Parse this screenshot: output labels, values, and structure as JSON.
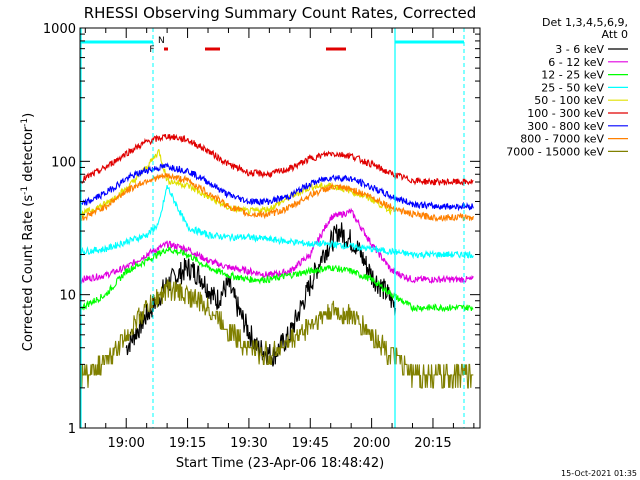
{
  "chart_data": {
    "type": "line",
    "title": "RHESSI Observing Summary Count Rates, Corrected",
    "xlabel": "Start Time (23-Apr-06 18:48:42)",
    "ylabel": "Corrected Count Rate (s⁻¹ detector⁻¹)",
    "ylabel_parts": {
      "a": "Corrected Count Rate (s",
      "b": "-1",
      "c": " detector",
      "d": "-1",
      "e": ")"
    },
    "timestamp": "15-Oct-2021 01:35",
    "y_scale": "log",
    "ylim": [
      1,
      1000
    ],
    "xlim": [
      "18:48:42",
      "20:26:30"
    ],
    "y_ticks": [
      "1",
      "10",
      "100",
      "1000"
    ],
    "x_ticks": [
      "19:00",
      "19:15",
      "19:30",
      "19:45",
      "20:00",
      "20:15"
    ],
    "legend_header": [
      "Det 1,3,4,5,6,9,",
      "Att 0"
    ],
    "flags": {
      "night_marker": "N",
      "flare_marker": "F"
    },
    "series": [
      {
        "name": "3 - 6 keV",
        "color": "#000000",
        "x": [
          "19:00",
          "19:05",
          "19:10",
          "19:15",
          "19:18",
          "19:22",
          "19:25",
          "19:28",
          "19:32",
          "19:36",
          "19:40",
          "19:44",
          "19:48",
          "19:52",
          "19:56",
          "20:00",
          "20:04",
          "20:06"
        ],
        "values": [
          4,
          7,
          12,
          16,
          14,
          9,
          12,
          7,
          4,
          3.5,
          5,
          10,
          20,
          30,
          24,
          14,
          10,
          8
        ]
      },
      {
        "name": "6 - 12 keV",
        "color": "#e000e0",
        "x": [
          "18:49",
          "18:55",
          "19:00",
          "19:05",
          "19:10",
          "19:15",
          "19:20",
          "19:25",
          "19:30",
          "19:35",
          "19:40",
          "19:45",
          "19:50",
          "19:55",
          "20:00",
          "20:05",
          "20:10",
          "20:15",
          "20:20",
          "20:25"
        ],
        "values": [
          13,
          14,
          16,
          20,
          24,
          22,
          18,
          16,
          15,
          14,
          15,
          20,
          38,
          42,
          24,
          15,
          13,
          13,
          13,
          13
        ]
      },
      {
        "name": "12 - 25 keV",
        "color": "#00ff00",
        "x": [
          "18:49",
          "18:55",
          "19:00",
          "19:05",
          "19:10",
          "19:15",
          "19:20",
          "19:25",
          "19:30",
          "19:35",
          "19:40",
          "19:45",
          "19:50",
          "19:55",
          "20:00",
          "20:05",
          "20:10",
          "20:15",
          "20:20",
          "20:25"
        ],
        "values": [
          8,
          10,
          15,
          18,
          22,
          20,
          16,
          14,
          13,
          13,
          14,
          15,
          16,
          15,
          13,
          10,
          8,
          8,
          8,
          8
        ]
      },
      {
        "name": "25 - 50 keV",
        "color": "#00ffff",
        "x": [
          "18:49",
          "18:55",
          "19:00",
          "19:05",
          "19:08",
          "19:10",
          "19:15",
          "19:20",
          "19:25",
          "19:30",
          "19:35",
          "19:40",
          "19:45",
          "19:50",
          "19:55",
          "20:00",
          "20:05",
          "20:10",
          "20:15",
          "20:20",
          "20:25"
        ],
        "values": [
          21,
          22,
          25,
          28,
          34,
          65,
          32,
          28,
          27,
          27,
          26,
          25,
          24,
          24,
          23,
          22,
          21,
          20,
          20,
          20,
          20
        ]
      },
      {
        "name": "50 - 100 keV",
        "color": "#e0e000",
        "x": [
          "18:49",
          "18:55",
          "19:00",
          "19:05",
          "19:08",
          "19:10",
          "19:15",
          "19:20",
          "19:25",
          "19:30",
          "19:35",
          "19:40",
          "19:45",
          "19:50",
          "19:55",
          "20:00",
          "20:05"
        ],
        "values": [
          40,
          48,
          62,
          90,
          120,
          72,
          66,
          54,
          45,
          42,
          44,
          54,
          64,
          66,
          60,
          52,
          42
        ]
      },
      {
        "name": "100 - 300 keV",
        "color": "#e00000",
        "x": [
          "18:49",
          "18:55",
          "19:00",
          "19:05",
          "19:10",
          "19:15",
          "19:20",
          "19:25",
          "19:30",
          "19:35",
          "19:40",
          "19:45",
          "19:50",
          "19:55",
          "20:00",
          "20:05",
          "20:10",
          "20:15",
          "20:20",
          "20:25"
        ],
        "values": [
          72,
          90,
          115,
          140,
          155,
          145,
          120,
          95,
          82,
          80,
          88,
          105,
          115,
          110,
          95,
          80,
          72,
          70,
          70,
          70
        ]
      },
      {
        "name": "300 - 800 keV",
        "color": "#0000ff",
        "x": [
          "18:49",
          "18:55",
          "19:00",
          "19:05",
          "19:10",
          "19:15",
          "19:20",
          "19:25",
          "19:30",
          "19:35",
          "19:40",
          "19:45",
          "19:50",
          "19:55",
          "20:00",
          "20:05",
          "20:10",
          "20:15",
          "20:20",
          "20:25"
        ],
        "values": [
          47,
          58,
          74,
          86,
          92,
          85,
          70,
          56,
          50,
          50,
          55,
          68,
          76,
          74,
          64,
          54,
          48,
          46,
          46,
          46
        ]
      },
      {
        "name": "800 - 7000 keV",
        "color": "#ff8000",
        "x": [
          "18:49",
          "18:55",
          "19:00",
          "19:05",
          "19:10",
          "19:15",
          "19:20",
          "19:25",
          "19:30",
          "19:35",
          "19:40",
          "19:45",
          "19:50",
          "19:55",
          "20:00",
          "20:05",
          "20:10",
          "20:15",
          "20:20",
          "20:25"
        ],
        "values": [
          37,
          46,
          60,
          72,
          78,
          72,
          58,
          46,
          40,
          40,
          45,
          56,
          64,
          62,
          54,
          45,
          40,
          38,
          38,
          38
        ]
      },
      {
        "name": "7000 - 15000 keV",
        "color": "#808000",
        "x": [
          "18:49",
          "18:55",
          "19:00",
          "19:05",
          "19:10",
          "19:15",
          "19:20",
          "19:25",
          "19:30",
          "19:35",
          "19:40",
          "19:45",
          "19:50",
          "19:55",
          "20:00",
          "20:05",
          "20:10",
          "20:15",
          "20:20",
          "20:25"
        ],
        "values": [
          2.5,
          3,
          5,
          8,
          11,
          10,
          8,
          5.5,
          4,
          3.5,
          4.5,
          6,
          7.5,
          7,
          5,
          3.5,
          2.5,
          2.5,
          2.5,
          2.5
        ]
      }
    ]
  }
}
